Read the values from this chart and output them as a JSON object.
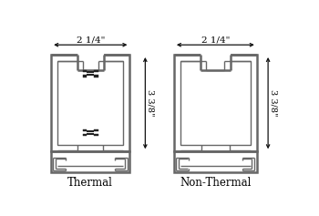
{
  "lc": "#666666",
  "lc2": "#444444",
  "black": "#111111",
  "label_thermal": "Thermal",
  "label_nonthermal": "Non-Thermal",
  "dim_width": "2 1/4\"",
  "dim_height": "3 3/8\""
}
